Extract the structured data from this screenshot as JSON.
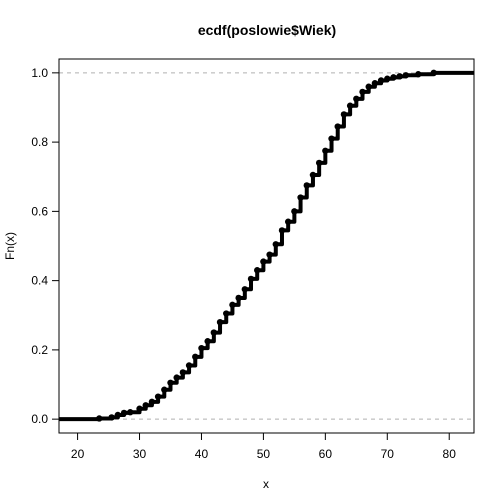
{
  "chart_data": {
    "type": "ecdf",
    "title": "ecdf(poslowie$Wiek)",
    "xlabel": "x",
    "ylabel": "Fn(x)",
    "xlim": [
      17,
      84
    ],
    "ylim": [
      -0.04,
      1.04
    ],
    "x_ticks": [
      20,
      30,
      40,
      50,
      60,
      70,
      80
    ],
    "y_ticks": [
      0.0,
      0.2,
      0.4,
      0.6,
      0.8,
      1.0
    ],
    "y_tick_labels": [
      "0.0",
      "0.2",
      "0.4",
      "0.6",
      "0.8",
      "1.0"
    ],
    "reference_lines": [
      0,
      1
    ],
    "grid": false,
    "legend": "none",
    "colors": {
      "points": "#000000",
      "reference": "#b0b0b0",
      "axis": "#000000"
    },
    "cdf_points": [
      [
        23.5,
        0.002
      ],
      [
        25.5,
        0.005
      ],
      [
        26.5,
        0.012
      ],
      [
        27.5,
        0.018
      ],
      [
        28.5,
        0.02
      ],
      [
        30,
        0.03
      ],
      [
        31,
        0.04
      ],
      [
        32,
        0.05
      ],
      [
        33,
        0.065
      ],
      [
        34,
        0.085
      ],
      [
        35,
        0.105
      ],
      [
        36,
        0.12
      ],
      [
        37,
        0.135
      ],
      [
        38,
        0.155
      ],
      [
        39,
        0.18
      ],
      [
        40,
        0.205
      ],
      [
        41,
        0.225
      ],
      [
        42,
        0.25
      ],
      [
        43,
        0.28
      ],
      [
        44,
        0.305
      ],
      [
        45,
        0.33
      ],
      [
        46,
        0.35
      ],
      [
        47,
        0.375
      ],
      [
        48,
        0.405
      ],
      [
        49,
        0.43
      ],
      [
        50,
        0.455
      ],
      [
        51,
        0.475
      ],
      [
        52,
        0.505
      ],
      [
        53,
        0.545
      ],
      [
        54,
        0.57
      ],
      [
        55,
        0.6
      ],
      [
        56,
        0.64
      ],
      [
        57,
        0.675
      ],
      [
        58,
        0.705
      ],
      [
        59,
        0.74
      ],
      [
        60,
        0.775
      ],
      [
        61,
        0.81
      ],
      [
        62,
        0.845
      ],
      [
        63,
        0.88
      ],
      [
        64,
        0.905
      ],
      [
        65,
        0.925
      ],
      [
        66,
        0.945
      ],
      [
        67,
        0.96
      ],
      [
        68,
        0.97
      ],
      [
        69,
        0.978
      ],
      [
        70,
        0.983
      ],
      [
        71,
        0.987
      ],
      [
        72,
        0.99
      ],
      [
        73,
        0.993
      ],
      [
        75,
        0.996
      ],
      [
        77.5,
        1.0
      ]
    ]
  }
}
